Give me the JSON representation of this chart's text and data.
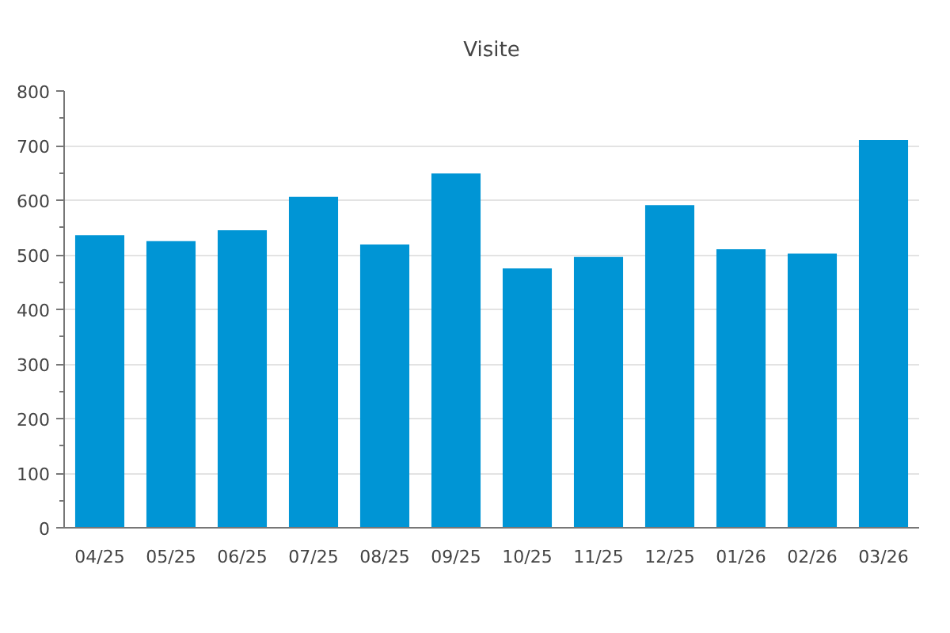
{
  "chart_data": {
    "type": "bar",
    "title": "Visite",
    "categories": [
      "04/25",
      "05/25",
      "06/25",
      "07/25",
      "08/25",
      "09/25",
      "10/25",
      "11/25",
      "12/25",
      "01/26",
      "02/26",
      "03/26"
    ],
    "values": [
      536,
      525,
      545,
      606,
      519,
      649,
      475,
      496,
      591,
      510,
      502,
      710
    ],
    "color": "#0095d5",
    "ylim": [
      0,
      800
    ],
    "yticks": [
      0,
      100,
      200,
      300,
      400,
      500,
      600,
      700,
      800
    ],
    "grid": "y"
  }
}
